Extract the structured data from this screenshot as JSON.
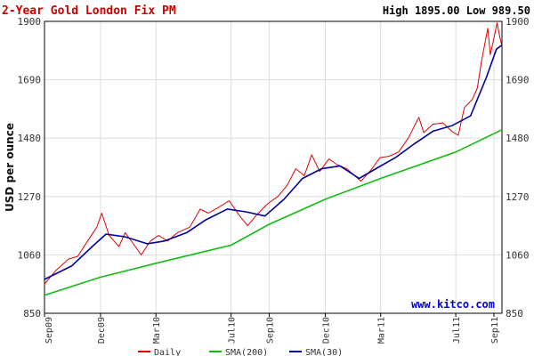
{
  "title": "2-Year Gold London Fix PM",
  "high_low": "High 1895.00 Low 989.50",
  "watermark": "www.kitco.com",
  "colors": {
    "title": "#cc0000",
    "daily": "#e00000",
    "sma200": "#11bb11",
    "sma30": "#000099",
    "watermark": "#0000cc",
    "grid": "#dddddd"
  },
  "chart_data": {
    "type": "line",
    "title": "2-Year Gold London Fix PM",
    "ylabel": "USD per ounce",
    "ylim": [
      850,
      1900
    ],
    "y_ticks": [
      "1900",
      "1690",
      "1480",
      "1270",
      "1060",
      "850"
    ],
    "x_ticks": [
      "Sep09",
      "Dec09",
      "Mar10",
      "Jul10",
      "Sep10",
      "Dec10",
      "Mar11",
      "Jul11",
      "Sep11"
    ],
    "x_tick_dates": [
      "2009-09-01",
      "2009-12-01",
      "2010-03-01",
      "2010-07-01",
      "2010-09-01",
      "2010-12-01",
      "2011-03-01",
      "2011-07-01",
      "2011-09-01"
    ],
    "x_range": [
      "2009-09-01",
      "2011-09-14"
    ],
    "grid": true,
    "legend_position": "bottom",
    "series": [
      {
        "name": "Daily",
        "color": "#e00000",
        "points": [
          [
            "2009-09-01",
            955
          ],
          [
            "2009-09-20",
            1005
          ],
          [
            "2009-10-10",
            1045
          ],
          [
            "2009-10-25",
            1055
          ],
          [
            "2009-11-10",
            1110
          ],
          [
            "2009-11-25",
            1160
          ],
          [
            "2009-12-03",
            1210
          ],
          [
            "2009-12-15",
            1130
          ],
          [
            "2009-12-31",
            1090
          ],
          [
            "2010-01-10",
            1140
          ],
          [
            "2010-01-25",
            1095
          ],
          [
            "2010-02-05",
            1060
          ],
          [
            "2010-02-20",
            1110
          ],
          [
            "2010-03-05",
            1130
          ],
          [
            "2010-03-20",
            1110
          ],
          [
            "2010-04-05",
            1140
          ],
          [
            "2010-04-25",
            1160
          ],
          [
            "2010-05-12",
            1225
          ],
          [
            "2010-05-25",
            1210
          ],
          [
            "2010-06-10",
            1230
          ],
          [
            "2010-06-28",
            1255
          ],
          [
            "2010-07-15",
            1200
          ],
          [
            "2010-07-28",
            1165
          ],
          [
            "2010-08-12",
            1205
          ],
          [
            "2010-08-30",
            1245
          ],
          [
            "2010-09-15",
            1270
          ],
          [
            "2010-09-30",
            1310
          ],
          [
            "2010-10-14",
            1370
          ],
          [
            "2010-10-28",
            1345
          ],
          [
            "2010-11-09",
            1420
          ],
          [
            "2010-11-22",
            1360
          ],
          [
            "2010-12-07",
            1405
          ],
          [
            "2010-12-20",
            1385
          ],
          [
            "2011-01-05",
            1370
          ],
          [
            "2011-01-28",
            1325
          ],
          [
            "2011-02-15",
            1370
          ],
          [
            "2011-02-28",
            1410
          ],
          [
            "2011-03-15",
            1415
          ],
          [
            "2011-03-30",
            1430
          ],
          [
            "2011-04-15",
            1480
          ],
          [
            "2011-05-02",
            1555
          ],
          [
            "2011-05-10",
            1500
          ],
          [
            "2011-05-25",
            1530
          ],
          [
            "2011-06-10",
            1535
          ],
          [
            "2011-06-24",
            1505
          ],
          [
            "2011-07-05",
            1490
          ],
          [
            "2011-07-15",
            1590
          ],
          [
            "2011-07-28",
            1620
          ],
          [
            "2011-08-05",
            1660
          ],
          [
            "2011-08-12",
            1760
          ],
          [
            "2011-08-22",
            1875
          ],
          [
            "2011-08-26",
            1780
          ],
          [
            "2011-09-01",
            1840
          ],
          [
            "2011-09-06",
            1895
          ],
          [
            "2011-09-09",
            1860
          ],
          [
            "2011-09-12",
            1830
          ],
          [
            "2011-09-14",
            1810
          ]
        ]
      },
      {
        "name": "SMA(200)",
        "color": "#11bb11",
        "points": [
          [
            "2009-09-01",
            915
          ],
          [
            "2009-12-01",
            980
          ],
          [
            "2010-03-01",
            1030
          ],
          [
            "2010-07-01",
            1095
          ],
          [
            "2010-09-01",
            1170
          ],
          [
            "2010-12-01",
            1260
          ],
          [
            "2011-03-01",
            1335
          ],
          [
            "2011-07-01",
            1430
          ],
          [
            "2011-09-14",
            1510
          ]
        ]
      },
      {
        "name": "SMA(30)",
        "color": "#000099",
        "points": [
          [
            "2009-09-01",
            972
          ],
          [
            "2009-10-15",
            1020
          ],
          [
            "2009-11-20",
            1095
          ],
          [
            "2009-12-10",
            1135
          ],
          [
            "2010-01-10",
            1125
          ],
          [
            "2010-02-15",
            1100
          ],
          [
            "2010-03-15",
            1110
          ],
          [
            "2010-04-20",
            1140
          ],
          [
            "2010-05-20",
            1185
          ],
          [
            "2010-06-25",
            1225
          ],
          [
            "2010-07-25",
            1215
          ],
          [
            "2010-08-25",
            1200
          ],
          [
            "2010-09-25",
            1260
          ],
          [
            "2010-10-25",
            1335
          ],
          [
            "2010-11-25",
            1370
          ],
          [
            "2010-12-25",
            1380
          ],
          [
            "2011-01-25",
            1335
          ],
          [
            "2011-02-25",
            1375
          ],
          [
            "2011-03-25",
            1410
          ],
          [
            "2011-04-25",
            1460
          ],
          [
            "2011-05-25",
            1505
          ],
          [
            "2011-06-25",
            1525
          ],
          [
            "2011-07-25",
            1560
          ],
          [
            "2011-08-20",
            1700
          ],
          [
            "2011-09-05",
            1800
          ],
          [
            "2011-09-14",
            1815
          ]
        ]
      }
    ]
  }
}
